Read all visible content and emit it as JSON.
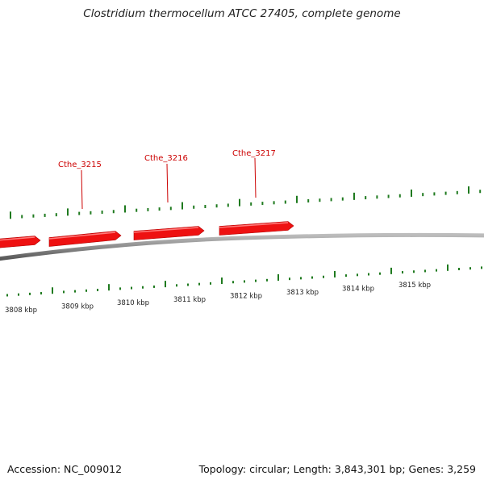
{
  "header": {
    "title": "Clostridium thermocellum ATCC 27405, complete genome"
  },
  "footer": {
    "accession": "Accession: NC_009012",
    "summary": "Topology: circular; Length: 3,843,301 bp; Genes: 3,259"
  },
  "colors": {
    "gene": "#ee1111",
    "gene_label": "#cc0000",
    "backbone": "#888888",
    "tick": "#1f7a1f"
  },
  "genes": [
    {
      "id": "Cthe_3214",
      "label": ""
    },
    {
      "id": "Cthe_3215",
      "label": "Cthe_3215"
    },
    {
      "id": "Cthe_3216",
      "label": "Cthe_3216"
    },
    {
      "id": "Cthe_3217",
      "label": "Cthe_3217"
    }
  ],
  "scale_labels": [
    "3808 kbp",
    "3809 kbp",
    "3810 kbp",
    "3811 kbp",
    "3812 kbp",
    "3813 kbp",
    "3814 kbp",
    "3815 kbp"
  ]
}
